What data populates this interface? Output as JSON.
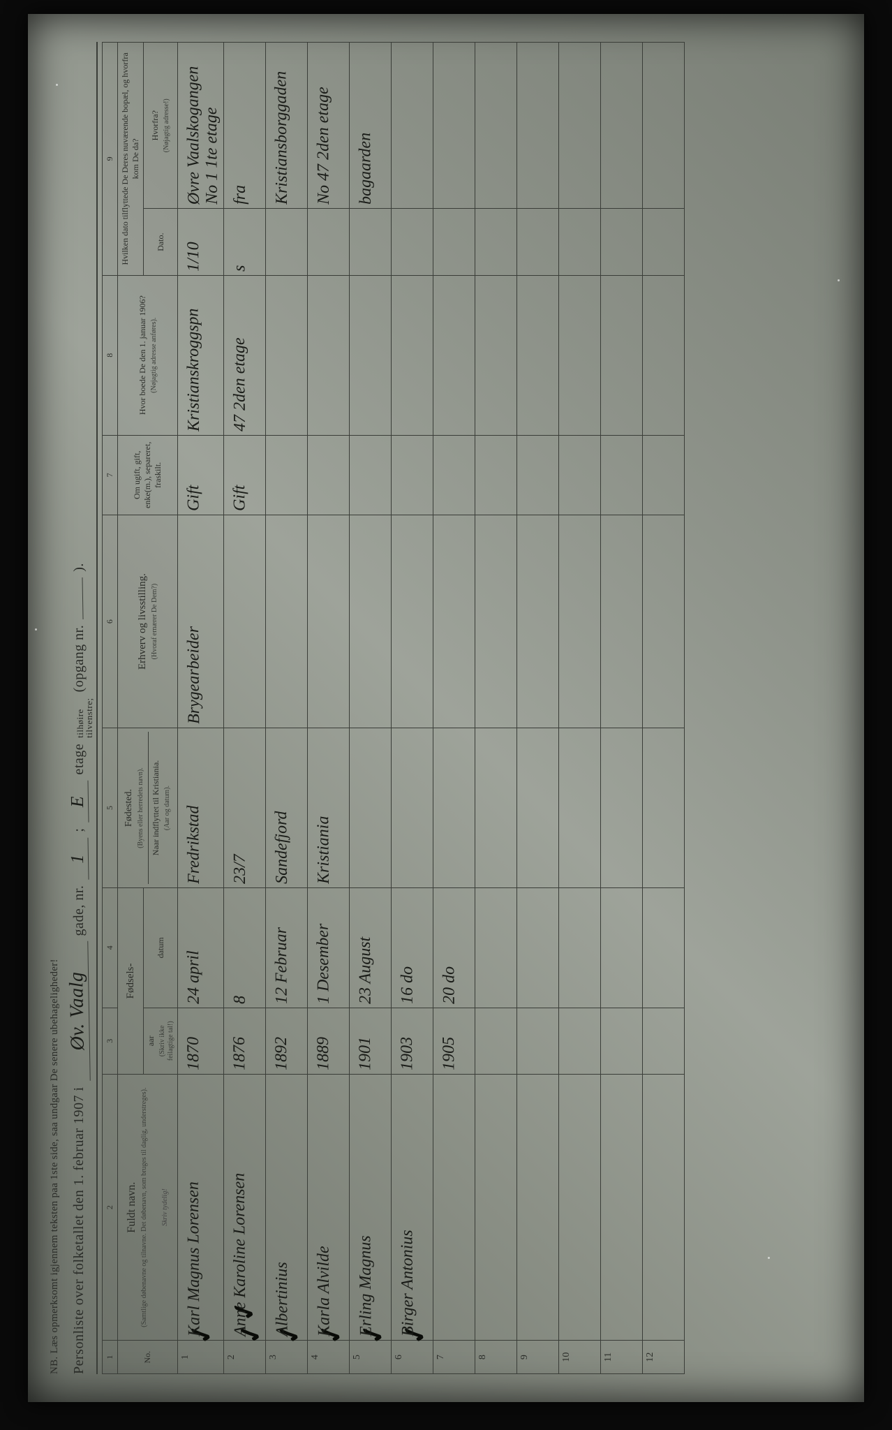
{
  "header": {
    "nb_text": "NB. Læs opmerksomt igjennem teksten paa 1ste side, saa undgaar De senere ubehageligheder!",
    "title_prefix": "Personliste over folketallet den 1. februar 1907 i",
    "street_hw": "Øv. Vaalg",
    "gade_label": "gade, nr.",
    "nr_hw": "1",
    "semicolon": ";",
    "etage_hw": "E",
    "etage_label": "etage",
    "tilhoire": "tilhøire",
    "tilvenstre": "tilvenstre;",
    "opgang_label": "(opgang nr.",
    "opgang_hw": "",
    "closing": ")."
  },
  "column_numbers": [
    "1",
    "2",
    "3",
    "4",
    "5",
    "6",
    "7",
    "8",
    "9"
  ],
  "columns": {
    "no": "No.",
    "name": "Fuldt navn.",
    "name_sub": "(Samtlige døbenavne og tilnavne. Det døbenavn, som bruges til daglig, understreges).",
    "name_instr": "Skriv tydelig!",
    "birth": "Fødsels-",
    "year": "aar",
    "date": "datum",
    "birth_instr": "(Skriv ikke feilagtige tal!)",
    "birthplace": "Fødested.",
    "birthplace_sub": "(Byens eller herredets navn).",
    "moved": "Naar indflyttet til Kristiania.",
    "moved_sub": "(Aar og datum).",
    "occupation": "Erhverv og livsstilling.",
    "occupation_sub": "(Hvoraf ernærer De Dem?)",
    "marital": "Om ugift, gift, enke(m.), separeret, fraskilt.",
    "addr1906": "Hvor boede De den 1. januar 1906?",
    "addr1906_sub": "(Nøjagtig adresse anføres).",
    "moved_in": "Hvilken dato tilflyttede De Deres nuværende bopæl, og hvorfra kom De da?",
    "when": "Dato.",
    "from": "Hvorfra?",
    "from_sub": "(Nøjagtig adresse!)"
  },
  "rows": [
    {
      "n": "1",
      "name": "Karl Magnus Lorensen",
      "yr": "1870",
      "dt": "24 april",
      "bp": "Fredrikstad",
      "occ": "Brygearbeider",
      "mar": "Gift",
      "a06": "Kristianskroggspn",
      "when": "1/10",
      "from": "Øvre Vaalskogangen No 1 1te etage",
      "chk": "✓"
    },
    {
      "n": "2",
      "name": "Anne Karoline Lorensen",
      "yr": "1876",
      "dt": "8",
      "bp": "23/7",
      "occ": "",
      "mar": "Gift",
      "a06": "47 2den etage",
      "when": "s",
      "from": "fra",
      "chk": "✓✓"
    },
    {
      "n": "3",
      "name": "Albertinius",
      "yr": "1892",
      "dt": "12 Februar",
      "bp": "Sandefjord",
      "occ": "",
      "mar": "",
      "a06": "",
      "when": "",
      "from": "Kristiansborggaden",
      "chk": "✓"
    },
    {
      "n": "4",
      "name": "Karla Alvilde",
      "yr": "1889",
      "dt": "1 Desember",
      "bp": "Kristiania",
      "occ": "",
      "mar": "",
      "a06": "",
      "when": "",
      "from": "No 47 2den etage",
      "chk": "✓"
    },
    {
      "n": "5",
      "name": "Erling Magnus",
      "yr": "1901",
      "dt": "23 August",
      "bp": "",
      "occ": "",
      "mar": "",
      "a06": "",
      "when": "",
      "from": "bagaarden",
      "chk": "✓"
    },
    {
      "n": "6",
      "name": "Birger Antonius",
      "yr": "1903",
      "dt": "16 do",
      "bp": "",
      "occ": "",
      "mar": "",
      "a06": "",
      "when": "",
      "from": "",
      "chk": "✓"
    },
    {
      "n": "7",
      "name": "",
      "yr": "1905",
      "dt": "20 do",
      "bp": "",
      "occ": "",
      "mar": "",
      "a06": "",
      "when": "",
      "from": "",
      "chk": ""
    },
    {
      "n": "8",
      "name": "",
      "yr": "",
      "dt": "",
      "bp": "",
      "occ": "",
      "mar": "",
      "a06": "",
      "when": "",
      "from": "",
      "chk": ""
    },
    {
      "n": "9",
      "name": "",
      "yr": "",
      "dt": "",
      "bp": "",
      "occ": "",
      "mar": "",
      "a06": "",
      "when": "",
      "from": "",
      "chk": ""
    },
    {
      "n": "10",
      "name": "",
      "yr": "",
      "dt": "",
      "bp": "",
      "occ": "",
      "mar": "",
      "a06": "",
      "when": "",
      "from": "",
      "chk": ""
    },
    {
      "n": "11",
      "name": "",
      "yr": "",
      "dt": "",
      "bp": "",
      "occ": "",
      "mar": "",
      "a06": "",
      "when": "",
      "from": "",
      "chk": ""
    },
    {
      "n": "12",
      "name": "",
      "yr": "",
      "dt": "",
      "bp": "",
      "occ": "",
      "mar": "",
      "a06": "",
      "when": "",
      "from": "",
      "chk": ""
    }
  ],
  "colors": {
    "page_bg": "#8a8f85",
    "ink": "#2a2c28",
    "hand_ink": "#1a1c18",
    "frame": "#0a0a0a"
  }
}
